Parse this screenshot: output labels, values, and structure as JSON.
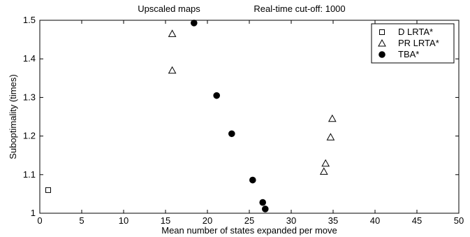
{
  "chart_data": {
    "type": "scatter",
    "title_left": "Upscaled maps",
    "title_right": "Real-time cut-off: 1000",
    "xlabel": "Mean number of states expanded per move",
    "ylabel": "Suboptimality (times)",
    "xlim": [
      0,
      50
    ],
    "ylim": [
      1,
      1.5
    ],
    "xticks": [
      0,
      5,
      10,
      15,
      20,
      25,
      30,
      35,
      40,
      45,
      50
    ],
    "yticks": [
      1,
      1.1,
      1.2,
      1.3,
      1.4,
      1.5
    ],
    "ytick_labels": [
      "1",
      "1.1",
      "1.2",
      "1.3",
      "1.4",
      "1.5"
    ],
    "grid": false,
    "legend_position": "top-right",
    "series": [
      {
        "name": "D LRTA*",
        "marker": "square-open",
        "color": "#000000",
        "points": [
          {
            "x": 1.0,
            "y": 1.06
          }
        ]
      },
      {
        "name": "PR LRTA*",
        "marker": "triangle-open",
        "color": "#000000",
        "points": [
          {
            "x": 15.8,
            "y": 1.465
          },
          {
            "x": 15.8,
            "y": 1.37
          },
          {
            "x": 34.9,
            "y": 1.245
          },
          {
            "x": 34.7,
            "y": 1.197
          },
          {
            "x": 34.1,
            "y": 1.129
          },
          {
            "x": 33.9,
            "y": 1.108
          }
        ]
      },
      {
        "name": "TBA*",
        "marker": "circle-filled",
        "color": "#000000",
        "points": [
          {
            "x": 18.4,
            "y": 1.493
          },
          {
            "x": 21.1,
            "y": 1.305
          },
          {
            "x": 22.9,
            "y": 1.206
          },
          {
            "x": 25.4,
            "y": 1.086
          },
          {
            "x": 26.6,
            "y": 1.028
          },
          {
            "x": 26.9,
            "y": 1.011
          }
        ]
      }
    ]
  }
}
